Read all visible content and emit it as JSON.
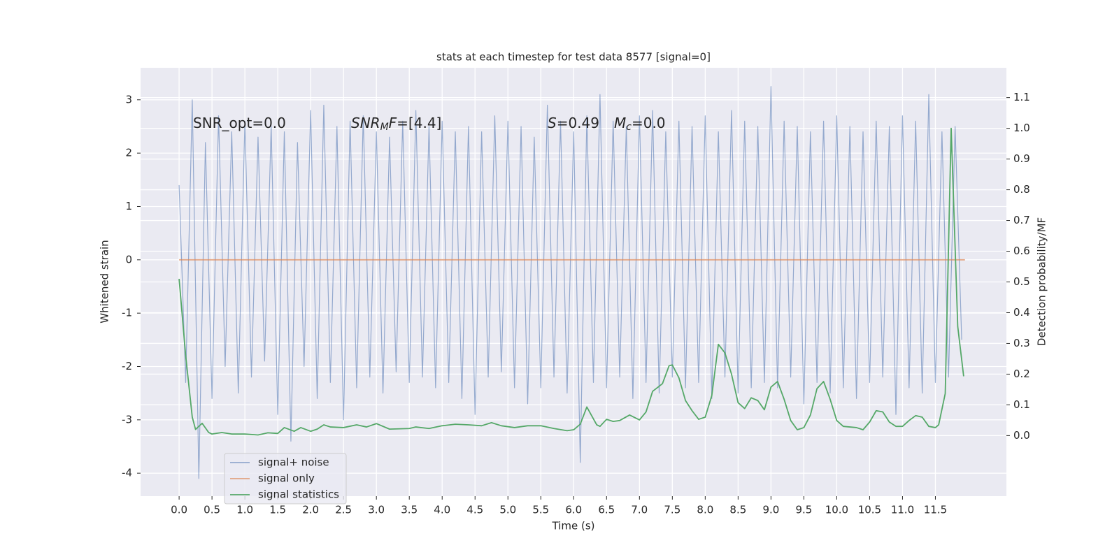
{
  "chart_data": {
    "type": "line",
    "title": "stats at each timestep for test data 8577 [signal=0]",
    "xlabel": "Time (s)",
    "ylabel": "Whitened strain",
    "y2label": "Detection probability/MF",
    "grid": true,
    "legend_loc": "lower left",
    "background": "#eaeaf2",
    "xlim": [
      -0.586,
      12.58
    ],
    "ylim": [
      -4.43,
      3.6
    ],
    "y2lim": [
      -0.197,
      1.197
    ],
    "xticks": [
      {
        "value": 0,
        "label": "0.0"
      },
      0.5,
      {
        "value": 1,
        "label": "1.0"
      },
      1.5,
      {
        "value": 2,
        "label": "2.0"
      },
      2.5,
      {
        "value": 3,
        "label": "3.0"
      },
      3.5,
      {
        "value": 4,
        "label": "4.0"
      },
      4.5,
      {
        "value": 5,
        "label": "5.0"
      },
      5.5,
      {
        "value": 6,
        "label": "6.0"
      },
      6.5,
      {
        "value": 7,
        "label": "7.0"
      },
      7.5,
      {
        "value": 8,
        "label": "8.0"
      },
      8.5,
      {
        "value": 9,
        "label": "9.0"
      },
      9.5,
      {
        "value": 10,
        "label": "10.0"
      },
      10.5,
      {
        "value": 11,
        "label": "11.0"
      },
      11.5
    ],
    "yticks": [
      -4,
      -3,
      -2,
      -1,
      0,
      1,
      2,
      3
    ],
    "y2ticks": [
      {
        "value": 0,
        "label": "0.0"
      },
      0.1,
      0.2,
      0.3,
      0.4,
      0.5,
      0.6,
      0.7,
      0.8,
      0.9,
      {
        "value": 1,
        "label": "1.0"
      },
      1.1
    ],
    "annotations": [
      {
        "parts": [
          {
            "text": "SNR_opt=0.0"
          }
        ]
      },
      {
        "parts": [
          {
            "text": "SNR",
            "italic": true
          },
          {
            "text": "M",
            "italic": true,
            "sub": true
          },
          {
            "text": "F",
            "italic": true
          },
          {
            "text": "=[4.4]"
          }
        ]
      },
      {
        "parts": [
          {
            "text": "S",
            "italic": true
          },
          {
            "text": "=0.49"
          }
        ]
      },
      {
        "parts": [
          {
            "text": "M",
            "italic": true
          },
          {
            "text": "c",
            "italic": true,
            "sub": true
          },
          {
            "text": "=0.0"
          }
        ]
      }
    ],
    "series": [
      {
        "name": "signal+ noise",
        "color": "#4c72b0",
        "opacity": 0.55,
        "x": [
          0,
          0.1,
          0.2,
          0.3,
          0.4,
          0.5,
          0.6,
          0.7,
          0.8,
          0.9,
          1,
          1.1,
          1.2,
          1.3,
          1.4,
          1.5,
          1.6,
          1.7,
          1.8,
          1.9,
          2,
          2.1,
          2.2,
          2.3,
          2.4,
          2.5,
          2.6,
          2.7,
          2.8,
          2.9,
          3,
          3.1,
          3.2,
          3.3,
          3.4,
          3.5,
          3.6,
          3.7,
          3.8,
          3.9,
          4,
          4.1,
          4.2,
          4.3,
          4.4,
          4.5,
          4.6,
          4.7,
          4.8,
          4.9,
          5,
          5.1,
          5.2,
          5.3,
          5.4,
          5.5,
          5.6,
          5.7,
          5.8,
          5.9,
          6,
          6.1,
          6.2,
          6.3,
          6.4,
          6.5,
          6.6,
          6.7,
          6.8,
          6.9,
          7,
          7.1,
          7.2,
          7.3,
          7.4,
          7.5,
          7.6,
          7.7,
          7.8,
          7.9,
          8,
          8.1,
          8.2,
          8.3,
          8.4,
          8.5,
          8.6,
          8.7,
          8.8,
          8.9,
          9,
          9.1,
          9.2,
          9.3,
          9.4,
          9.5,
          9.6,
          9.7,
          9.8,
          9.9,
          10,
          10.1,
          10.2,
          10.3,
          10.4,
          10.5,
          10.6,
          10.7,
          10.8,
          10.9,
          11,
          11.1,
          11.2,
          11.3,
          11.4,
          11.5,
          11.6,
          11.7,
          11.8,
          11.9
        ],
        "values": [
          1.4,
          -2.3,
          3.0,
          -4.1,
          2.2,
          -2.6,
          2.7,
          -2.0,
          2.4,
          -2.5,
          2.6,
          -2.2,
          2.3,
          -1.9,
          2.5,
          -2.9,
          2.4,
          -3.4,
          2.2,
          -2.0,
          2.8,
          -2.6,
          2.9,
          -2.3,
          2.5,
          -3.0,
          2.6,
          -2.4,
          2.7,
          -2.2,
          2.4,
          -2.5,
          2.3,
          -2.1,
          2.6,
          -2.3,
          2.8,
          -2.2,
          2.5,
          -2.4,
          2.6,
          -2.3,
          2.4,
          -2.6,
          2.5,
          -2.9,
          2.4,
          -2.2,
          2.7,
          -2.1,
          2.6,
          -2.4,
          2.5,
          -2.7,
          2.3,
          -2.4,
          2.9,
          -2.2,
          2.6,
          -2.5,
          2.4,
          -3.8,
          2.7,
          -2.3,
          3.1,
          -2.4,
          2.6,
          -2.2,
          2.5,
          -2.6,
          2.7,
          -2.3,
          2.8,
          -2.5,
          2.4,
          -2.2,
          2.6,
          -2.4,
          2.5,
          -2.3,
          2.7,
          -2.6,
          2.4,
          -2.2,
          2.8,
          -2.5,
          2.6,
          -2.4,
          2.5,
          -2.3,
          3.25,
          -2.4,
          2.6,
          -2.2,
          2.5,
          -2.7,
          2.4,
          -2.3,
          2.6,
          -2.5,
          2.7,
          -2.4,
          2.5,
          -2.6,
          2.4,
          -2.3,
          2.6,
          -2.2,
          2.5,
          -2.9,
          2.7,
          -2.4,
          2.6,
          -2.5,
          3.1,
          -2.3,
          2.4,
          -2.2,
          2.5,
          -1.5
        ]
      },
      {
        "name": "signal only",
        "color": "#dd8452",
        "opacity": 0.7,
        "x": [
          0,
          11.95
        ],
        "values": [
          0,
          0
        ]
      },
      {
        "name": "signal statistics",
        "color": "#55a868",
        "opacity": 1,
        "axis": "y2",
        "x": [
          0,
          0.1,
          0.2,
          0.25,
          0.35,
          0.45,
          0.5,
          0.65,
          0.8,
          1.0,
          1.2,
          1.35,
          1.5,
          1.6,
          1.75,
          1.85,
          2.0,
          2.1,
          2.2,
          2.3,
          2.5,
          2.7,
          2.85,
          3.0,
          3.2,
          3.5,
          3.6,
          3.8,
          4.0,
          4.2,
          4.4,
          4.6,
          4.75,
          4.9,
          5.1,
          5.3,
          5.5,
          5.7,
          5.9,
          6.0,
          6.1,
          6.2,
          6.35,
          6.4,
          6.5,
          6.6,
          6.7,
          6.85,
          7.0,
          7.1,
          7.2,
          7.35,
          7.45,
          7.5,
          7.6,
          7.7,
          7.8,
          7.9,
          8.0,
          8.1,
          8.2,
          8.3,
          8.4,
          8.5,
          8.6,
          8.7,
          8.8,
          8.9,
          9.0,
          9.1,
          9.2,
          9.3,
          9.4,
          9.5,
          9.6,
          9.7,
          9.8,
          9.9,
          10.0,
          10.1,
          10.3,
          10.4,
          10.5,
          10.6,
          10.7,
          10.8,
          10.9,
          11.0,
          11.1,
          11.2,
          11.3,
          11.4,
          11.5,
          11.55,
          11.65,
          11.74,
          11.84,
          11.93
        ],
        "values": [
          0.51,
          0.26,
          0.06,
          0.02,
          0.04,
          0.01,
          0.005,
          0.01,
          0.005,
          0.005,
          0.002,
          0.009,
          0.007,
          0.026,
          0.014,
          0.026,
          0.014,
          0.021,
          0.035,
          0.028,
          0.026,
          0.035,
          0.028,
          0.039,
          0.021,
          0.023,
          0.028,
          0.023,
          0.032,
          0.037,
          0.035,
          0.032,
          0.042,
          0.032,
          0.026,
          0.032,
          0.032,
          0.023,
          0.016,
          0.019,
          0.037,
          0.093,
          0.035,
          0.03,
          0.053,
          0.046,
          0.049,
          0.067,
          0.051,
          0.077,
          0.144,
          0.169,
          0.227,
          0.23,
          0.188,
          0.114,
          0.081,
          0.053,
          0.06,
          0.13,
          0.297,
          0.269,
          0.2,
          0.107,
          0.088,
          0.123,
          0.114,
          0.084,
          0.158,
          0.176,
          0.118,
          0.049,
          0.019,
          0.026,
          0.067,
          0.153,
          0.176,
          0.118,
          0.049,
          0.03,
          0.026,
          0.019,
          0.044,
          0.081,
          0.077,
          0.044,
          0.03,
          0.03,
          0.049,
          0.065,
          0.06,
          0.03,
          0.026,
          0.035,
          0.137,
          1.0,
          0.355,
          0.193
        ]
      }
    ]
  }
}
